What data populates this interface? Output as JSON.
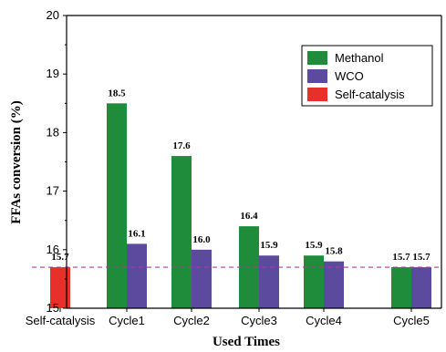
{
  "chart_data": {
    "type": "bar",
    "xlabel": "Used Times",
    "ylabel": "FFAs conversion (%)",
    "ylim": [
      15,
      20
    ],
    "yticks": [
      15,
      16,
      17,
      18,
      19,
      20
    ],
    "categories": [
      "Self-catalysis",
      "Cycle1",
      "Cycle2",
      "Cycle3",
      "Cycle4",
      "Cycle5"
    ],
    "series": [
      {
        "name": "Methanol",
        "color": "#1e8c3a",
        "values": [
          null,
          18.5,
          17.6,
          16.4,
          15.9,
          15.7
        ],
        "labels": [
          "",
          "18.5",
          "17.6",
          "16.4",
          "15.9",
          "15.7"
        ]
      },
      {
        "name": "WCO",
        "color": "#5b4a9e",
        "values": [
          null,
          16.1,
          16.0,
          15.9,
          15.8,
          15.7
        ],
        "labels": [
          "",
          "16.1",
          "16.0",
          "15.9",
          "15.8",
          "15.7"
        ]
      },
      {
        "name": "Self-catalysis",
        "color": "#e8302a",
        "values": [
          15.7,
          null,
          null,
          null,
          null,
          null
        ],
        "labels": [
          "15.7",
          "",
          "",
          "",
          "",
          ""
        ]
      }
    ],
    "reference_line": {
      "value": 15.7,
      "style": "dashed",
      "color": "#b0389a"
    },
    "legend": {
      "placement": "top-right"
    },
    "grid": false
  }
}
